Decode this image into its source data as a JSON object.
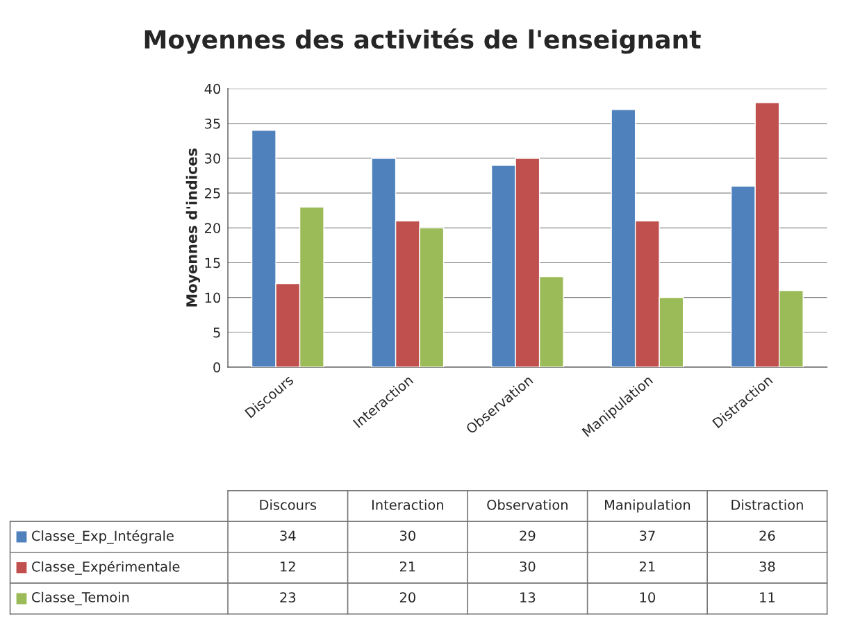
{
  "chart_data": {
    "type": "bar",
    "title": "Moyennes des activités de l'enseignant",
    "ylabel": "Moyennes d'indices",
    "categories": [
      "Discours",
      "Interaction",
      "Observation",
      "Manipulation",
      "Distraction"
    ],
    "series": [
      {
        "name": "Classe_Exp_Intégrale",
        "color": "#4f81bd",
        "values": [
          34,
          30,
          29,
          37,
          26
        ]
      },
      {
        "name": "Classe_Expérimentale",
        "color": "#c0504d",
        "values": [
          12,
          21,
          30,
          21,
          38
        ]
      },
      {
        "name": "Classe_Temoin",
        "color": "#9bbb59",
        "values": [
          23,
          20,
          13,
          10,
          11
        ]
      }
    ],
    "ylim": [
      0,
      40
    ],
    "yticks": [
      0,
      5,
      10,
      15,
      20,
      25,
      30,
      35,
      40
    ],
    "grid": "y",
    "legend": "bottom",
    "data_labels": true
  }
}
